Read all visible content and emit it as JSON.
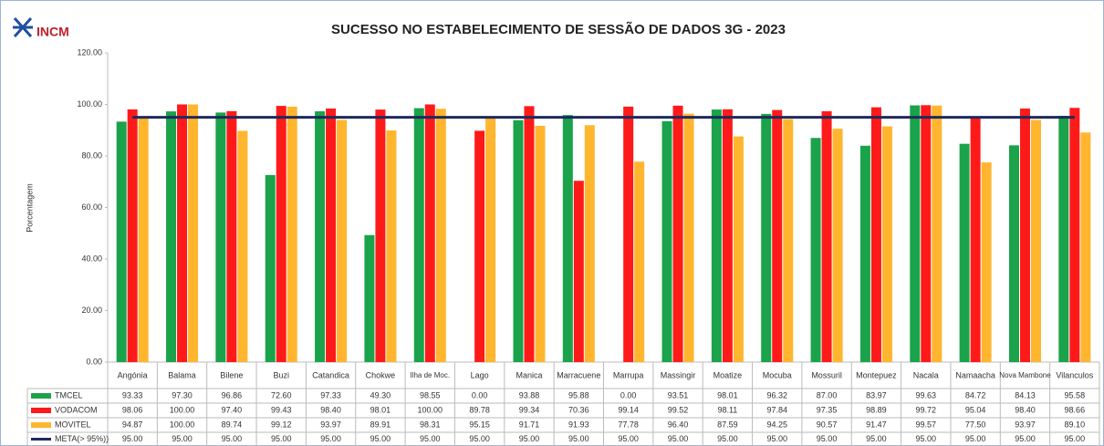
{
  "chart_data": {
    "type": "bar",
    "title": "SUCESSO NO ESTABELECIMENTO DE SESSÃO DE DADOS 3G - 2023",
    "logo": "INCM",
    "y_label": "Porcentagem",
    "categories": [
      "Angónia",
      "Balama",
      "Bilene",
      "Buzi",
      "Catandica",
      "Chokwe",
      "Ilha de Moc.",
      "Lago",
      "Manica",
      "Marracuene",
      "Marrupa",
      "Massingir",
      "Moatize",
      "Mocuba",
      "Mossuril",
      "Montepuez",
      "Nacala",
      "Namaacha",
      "Nova Mambone",
      "Vilanculos"
    ],
    "series": [
      {
        "name": "TMCEL",
        "color": "#1aa34a",
        "type": "bar",
        "values": [
          93.33,
          97.3,
          96.86,
          72.6,
          97.33,
          49.3,
          98.55,
          0,
          93.88,
          95.88,
          0,
          93.51,
          98.01,
          96.32,
          87.0,
          83.97,
          99.63,
          84.72,
          84.13,
          95.58
        ],
        "value_labels": [
          "93.33",
          "97.30",
          "96.86",
          "72.60",
          "97.33",
          "49.30",
          "98.55",
          "0.00",
          "93.88",
          "95.88",
          "0.00",
          "93.51",
          "98.01",
          "96.32",
          "87.00",
          "83.97",
          "99.63",
          "84.72",
          "84.13",
          "95.58"
        ]
      },
      {
        "name": "VODACOM",
        "color": "#ff1a1a",
        "type": "bar",
        "values": [
          98.06,
          100,
          97.4,
          99.43,
          98.4,
          98.01,
          100,
          89.78,
          99.34,
          70.36,
          99.14,
          99.52,
          98.11,
          97.84,
          97.35,
          98.89,
          99.72,
          95.04,
          98.4,
          98.66
        ],
        "value_labels": [
          "98.06",
          "100.00",
          "97.40",
          "99.43",
          "98.40",
          "98.01",
          "100.00",
          "89.78",
          "99.34",
          "70.36",
          "99.14",
          "99.52",
          "98.11",
          "97.84",
          "97.35",
          "98.89",
          "99.72",
          "95.04",
          "98.40",
          "98.66"
        ]
      },
      {
        "name": "MOVITEL",
        "color": "#ffb52e",
        "type": "bar",
        "values": [
          94.87,
          100,
          89.74,
          99.12,
          93.97,
          89.91,
          98.31,
          95.15,
          91.71,
          91.93,
          77.78,
          96.4,
          87.59,
          94.25,
          90.57,
          91.47,
          99.57,
          77.5,
          93.97,
          89.1
        ],
        "value_labels": [
          "94.87",
          "100.00",
          "89.74",
          "99.12",
          "93.97",
          "89.91",
          "98.31",
          "95.15",
          "91.71",
          "91.93",
          "77.78",
          "96.40",
          "87.59",
          "94.25",
          "90.57",
          "91.47",
          "99.57",
          "77.50",
          "93.97",
          "89.10"
        ]
      },
      {
        "name": "META(> 95%))",
        "color": "#1f2a5c",
        "type": "line",
        "values": [
          95,
          95,
          95,
          95,
          95,
          95,
          95,
          95,
          95,
          95,
          95,
          95,
          95,
          95,
          95,
          95,
          95,
          95,
          95,
          95
        ],
        "value_labels": [
          "95.00",
          "95.00",
          "95.00",
          "95.00",
          "95.00",
          "95.00",
          "95.00",
          "95.00",
          "95.00",
          "95.00",
          "95.00",
          "95.00",
          "95.00",
          "95.00",
          "95.00",
          "95.00",
          "95.00",
          "95.00",
          "95.00",
          "95.00"
        ]
      }
    ],
    "ylim": [
      0,
      120
    ],
    "yticks": [
      {
        "value": 0,
        "label": "0.00"
      },
      {
        "value": 20,
        "label": "20.00"
      },
      {
        "value": 40,
        "label": "40.00"
      },
      {
        "value": 60,
        "label": "60.00"
      },
      {
        "value": 80,
        "label": "80.00"
      },
      {
        "value": 100,
        "label": "100.00"
      },
      {
        "value": 120,
        "label": "120.00"
      }
    ],
    "grid": false
  }
}
